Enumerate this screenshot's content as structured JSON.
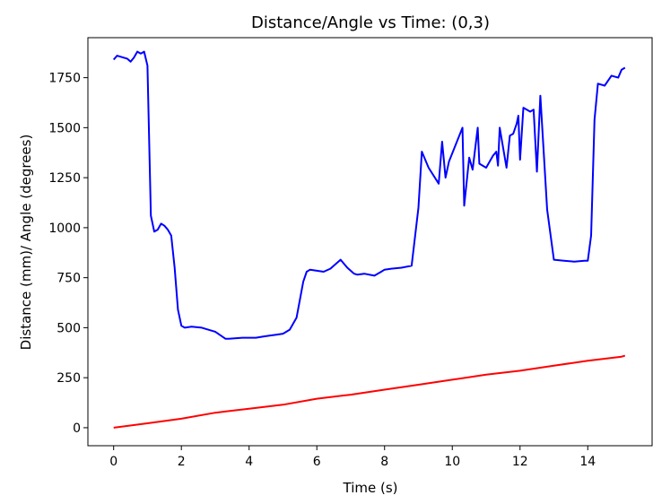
{
  "chart_data": {
    "type": "line",
    "title": "Distance/Angle vs Time: (0,3)",
    "xlabel": "Time (s)",
    "ylabel": "Distance (mm)/ Angle (degrees)",
    "xlim": [
      -0.76,
      15.9
    ],
    "ylim": [
      -90,
      1950
    ],
    "xticks": [
      0,
      2,
      4,
      6,
      8,
      10,
      12,
      14
    ],
    "yticks": [
      0,
      250,
      500,
      750,
      1000,
      1250,
      1500,
      1750
    ],
    "grid": false,
    "legend": "none",
    "series": [
      {
        "color": "#0000ff",
        "x": [
          0,
          0.1,
          0.2,
          0.3,
          0.4,
          0.5,
          0.6,
          0.7,
          0.8,
          0.9,
          1.0,
          1.1,
          1.2,
          1.3,
          1.4,
          1.5,
          1.6,
          1.7,
          1.8,
          1.9,
          2.0,
          2.1,
          2.3,
          2.6,
          3.0,
          3.3,
          3.4,
          3.8,
          4.2,
          4.4,
          4.6,
          4.8,
          5.0,
          5.2,
          5.4,
          5.6,
          5.7,
          5.8,
          6.2,
          6.4,
          6.7,
          6.9,
          7.1,
          7.2,
          7.4,
          7.7,
          7.9,
          8.0,
          8.2,
          8.5,
          8.8,
          9.0,
          9.1,
          9.3,
          9.6,
          9.7,
          9.8,
          9.9,
          10.3,
          10.35,
          10.5,
          10.6,
          10.75,
          10.8,
          11.0,
          11.2,
          11.3,
          11.35,
          11.4,
          11.6,
          11.7,
          11.8,
          11.9,
          11.95,
          12.0,
          12.1,
          12.3,
          12.4,
          12.5,
          12.6,
          12.8,
          13.0,
          13.3,
          13.6,
          13.9,
          14.0,
          14.1,
          14.2,
          14.3,
          14.5,
          14.7,
          14.9,
          15.0,
          15.1
        ],
        "y": [
          1840,
          1860,
          1855,
          1850,
          1845,
          1830,
          1850,
          1880,
          1870,
          1880,
          1810,
          1060,
          980,
          990,
          1020,
          1010,
          990,
          960,
          800,
          590,
          510,
          500,
          505,
          500,
          480,
          445,
          445,
          450,
          450,
          455,
          460,
          465,
          470,
          490,
          550,
          730,
          780,
          790,
          780,
          795,
          840,
          800,
          770,
          765,
          770,
          760,
          780,
          790,
          795,
          800,
          810,
          1100,
          1380,
          1300,
          1220,
          1430,
          1250,
          1330,
          1500,
          1110,
          1350,
          1290,
          1500,
          1320,
          1300,
          1360,
          1380,
          1310,
          1500,
          1300,
          1460,
          1470,
          1520,
          1560,
          1340,
          1600,
          1580,
          1590,
          1280,
          1660,
          1090,
          840,
          835,
          830,
          835,
          835,
          960,
          1540,
          1720,
          1710,
          1760,
          1750,
          1790,
          1800
        ]
      },
      {
        "color": "#ff0000",
        "x": [
          0,
          1,
          2,
          3,
          4,
          5,
          6,
          7,
          8,
          9,
          10,
          11,
          12,
          13,
          14,
          15,
          15.1
        ],
        "y": [
          0,
          22,
          45,
          75,
          95,
          115,
          145,
          165,
          190,
          215,
          240,
          265,
          285,
          310,
          335,
          355,
          360
        ]
      }
    ]
  }
}
